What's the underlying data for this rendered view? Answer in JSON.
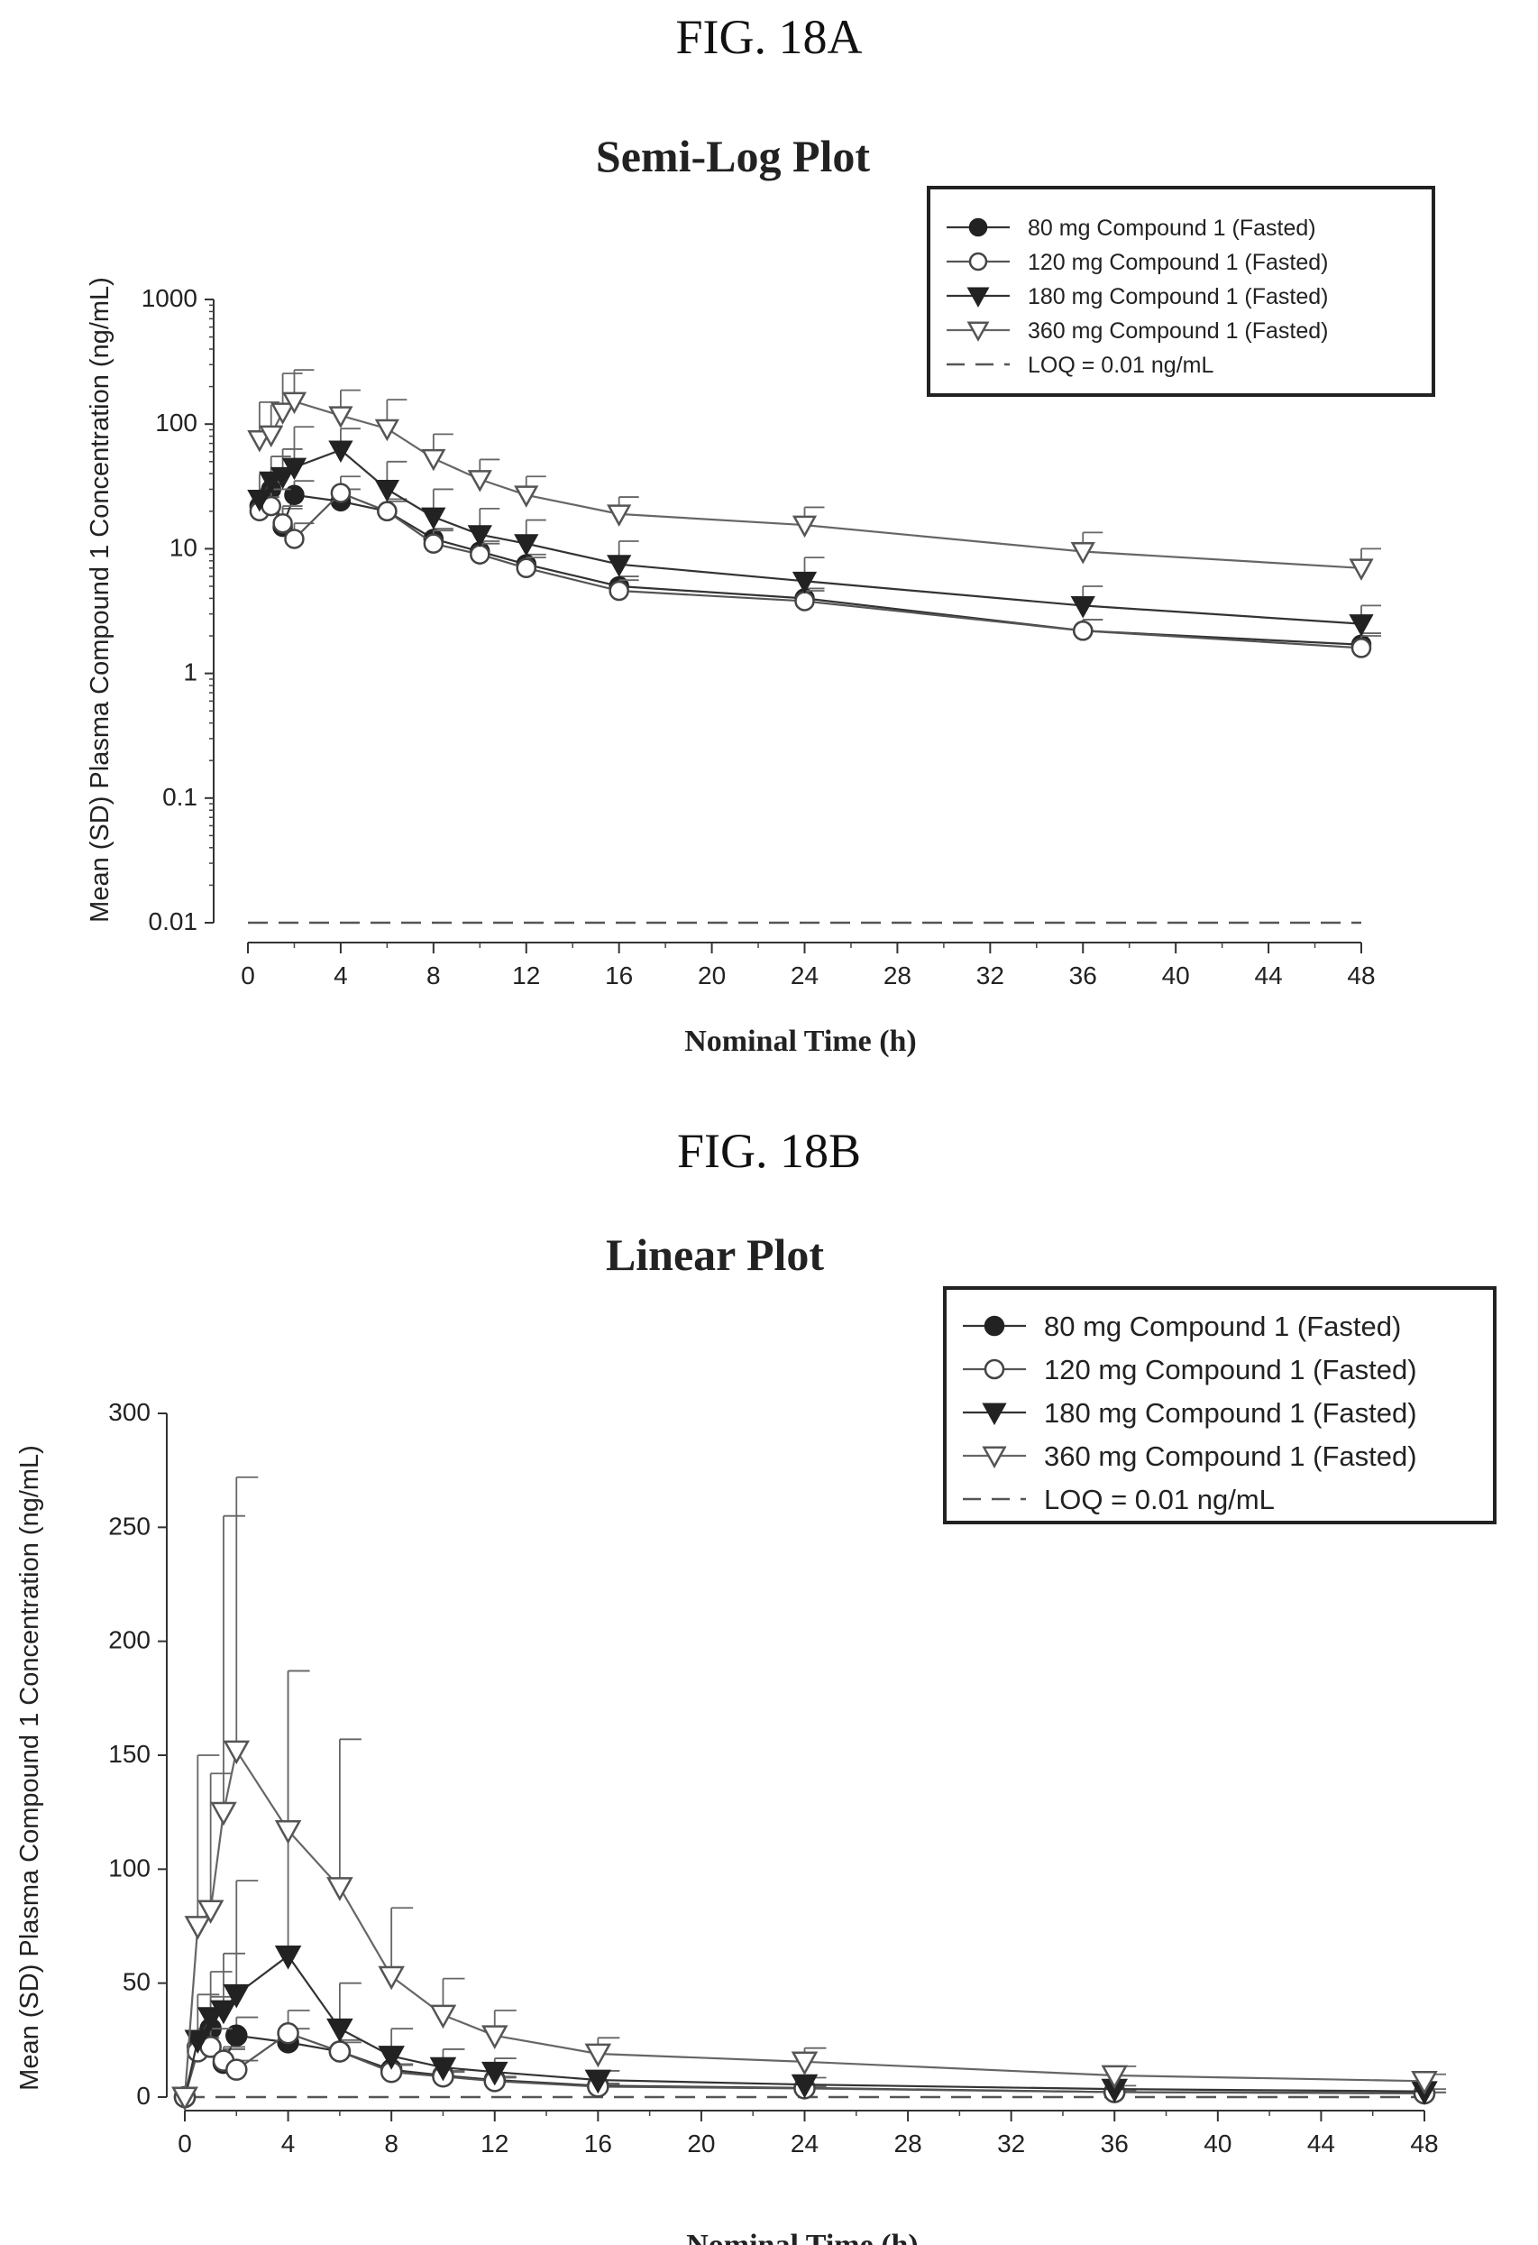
{
  "figures": {
    "fig_a_label": "FIG. 18A",
    "fig_b_label": "FIG. 18B"
  },
  "legend": {
    "entries": [
      {
        "label": "80 mg   Compound 1 (Fasted)",
        "marker": "filled-circle"
      },
      {
        "label": "120 mg Compound 1 (Fasted)",
        "marker": "open-circle"
      },
      {
        "label": "180 mg Compound 1 (Fasted)",
        "marker": "filled-triangle-down"
      },
      {
        "label": "360 mg Compound 1 (Fasted)",
        "marker": "open-triangle-down"
      }
    ],
    "loq_label": "LOQ = 0.01 ng/mL"
  },
  "chart_data": [
    {
      "type": "line",
      "title": "Semi-Log Plot",
      "xlabel": "Nominal Time (h)",
      "ylabel": "Mean (SD) Plasma Compound 1 Concentration (ng/mL)",
      "yscale": "log",
      "xlim": [
        0,
        48
      ],
      "ylim": [
        0.01,
        1000
      ],
      "xticks": [
        0,
        4,
        8,
        12,
        16,
        20,
        24,
        28,
        32,
        36,
        40,
        44,
        48
      ],
      "xtick_labels": [
        "0",
        "4",
        "8",
        "12",
        "16",
        "20",
        "24",
        "28",
        "32",
        "36",
        "40",
        "44",
        "48"
      ],
      "yticks": [
        0.01,
        0.1,
        1,
        10,
        100,
        1000
      ],
      "ytick_labels": [
        "0.01",
        "0.1",
        "1",
        "10",
        "100",
        "1000"
      ],
      "legend_position": "top-right",
      "grid": false,
      "loq": 0.01,
      "x": [
        0.5,
        1,
        1.5,
        2,
        4,
        6,
        8,
        10,
        12,
        16,
        24,
        36,
        48
      ],
      "series": [
        {
          "name": "80 mg   Compound 1 (Fasted)",
          "values": [
            22,
            30,
            15,
            27,
            24,
            20,
            12,
            9.5,
            7.5,
            5,
            4,
            2.2,
            1.7
          ],
          "sd": [
            8,
            14,
            6,
            8,
            6,
            4,
            2.5,
            2,
            1.5,
            1,
            0.8,
            0.5,
            0.4
          ]
        },
        {
          "name": "120 mg Compound 1 (Fasted)",
          "values": [
            20,
            22,
            16,
            12,
            28,
            20,
            11,
            9,
            7,
            4.6,
            3.8,
            2.2,
            1.6
          ],
          "sd": [
            6,
            8,
            6,
            4,
            10,
            5,
            3,
            2,
            1.5,
            1,
            0.8,
            0.5,
            0.4
          ]
        },
        {
          "name": "180 mg Compound 1 (Fasted)",
          "values": [
            25,
            35,
            38,
            45,
            62,
            30,
            18,
            13,
            11,
            7.5,
            5.5,
            3.5,
            2.5
          ],
          "sd": [
            15,
            20,
            25,
            50,
            30,
            20,
            12,
            8,
            6,
            4,
            3,
            1.5,
            1
          ]
        },
        {
          "name": "360 mg Compound 1 (Fasted)",
          "values": [
            75,
            82,
            125,
            152,
            117,
            92,
            53,
            36,
            27,
            19,
            15.5,
            9.5,
            7
          ],
          "sd": [
            75,
            60,
            130,
            120,
            70,
            65,
            30,
            16,
            11,
            7,
            6,
            4,
            3
          ]
        }
      ]
    },
    {
      "type": "line",
      "title": "Linear Plot",
      "xlabel": "Nominal Time (h)",
      "ylabel": "Mean (SD) Plasma Compound 1 Concentration (ng/mL)",
      "yscale": "linear",
      "xlim": [
        0,
        48
      ],
      "ylim": [
        0,
        300
      ],
      "xticks": [
        0,
        4,
        8,
        12,
        16,
        20,
        24,
        28,
        32,
        36,
        40,
        44,
        48
      ],
      "xtick_labels": [
        "0",
        "4",
        "8",
        "12",
        "16",
        "20",
        "24",
        "28",
        "32",
        "36",
        "40",
        "44",
        "48"
      ],
      "yticks": [
        0,
        50,
        100,
        150,
        200,
        250,
        300
      ],
      "ytick_labels": [
        "0",
        "50",
        "100",
        "150",
        "200",
        "250",
        "300"
      ],
      "legend_position": "top-right",
      "grid": false,
      "loq": 0.01,
      "x": [
        0,
        0.5,
        1,
        1.5,
        2,
        4,
        6,
        8,
        10,
        12,
        16,
        24,
        36,
        48
      ],
      "series": [
        {
          "name": "80 mg   Compound 1 (Fasted)",
          "values": [
            0,
            22,
            30,
            15,
            27,
            24,
            20,
            12,
            9.5,
            7.5,
            5,
            4,
            2.2,
            1.7
          ],
          "sd": [
            0,
            8,
            14,
            6,
            8,
            6,
            4,
            2.5,
            2,
            1.5,
            1,
            0.8,
            0.5,
            0.4
          ]
        },
        {
          "name": "120 mg Compound 1 (Fasted)",
          "values": [
            0,
            20,
            22,
            16,
            12,
            28,
            20,
            11,
            9,
            7,
            4.6,
            3.8,
            2.2,
            1.6
          ],
          "sd": [
            0,
            6,
            8,
            6,
            4,
            10,
            5,
            3,
            2,
            1.5,
            1,
            0.8,
            0.5,
            0.4
          ]
        },
        {
          "name": "180 mg Compound 1 (Fasted)",
          "values": [
            0,
            25,
            35,
            38,
            45,
            62,
            30,
            18,
            13,
            11,
            7.5,
            5.5,
            3.5,
            2.5
          ],
          "sd": [
            0,
            20,
            20,
            25,
            50,
            125,
            20,
            12,
            8,
            6,
            4,
            3,
            1.5,
            1
          ]
        },
        {
          "name": "360 mg Compound 1 (Fasted)",
          "values": [
            0,
            75,
            82,
            125,
            152,
            117,
            92,
            53,
            36,
            27,
            19,
            15.5,
            9.5,
            7
          ],
          "sd": [
            0,
            75,
            60,
            130,
            120,
            70,
            65,
            30,
            16,
            11,
            7,
            6,
            4,
            3
          ]
        }
      ]
    }
  ]
}
